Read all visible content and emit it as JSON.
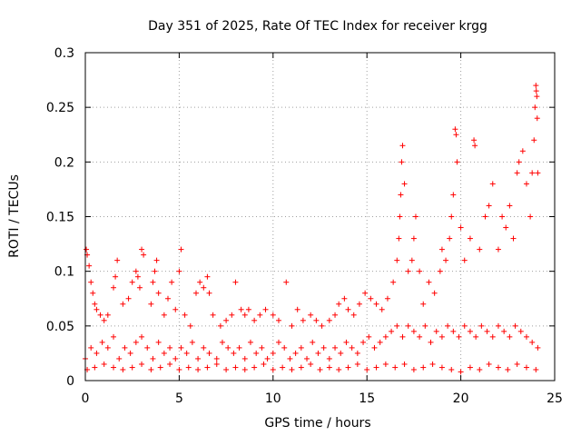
{
  "chart_data": {
    "type": "scatter",
    "title": "Day 351 of 2025, Rate Of TEC Index for receiver krgg",
    "xlabel": "GPS time / hours",
    "ylabel": "ROTI / TECUs",
    "xlim": [
      0,
      25
    ],
    "ylim": [
      0,
      0.3
    ],
    "x_ticks": [
      "0",
      "5",
      "10",
      "15",
      "20",
      "25"
    ],
    "y_ticks": [
      "0",
      "0.05",
      "0.1",
      "0.15",
      "0.2",
      "0.25",
      "0.3"
    ],
    "grid": true,
    "marker": "+",
    "color": "#ff0000",
    "series": [
      {
        "points": [
          [
            0.05,
            0.12
          ],
          [
            0.1,
            0.115
          ],
          [
            0.2,
            0.105
          ],
          [
            0.3,
            0.09
          ],
          [
            0.4,
            0.08
          ],
          [
            0.5,
            0.07
          ],
          [
            0.6,
            0.065
          ],
          [
            0.8,
            0.06
          ],
          [
            1.0,
            0.055
          ],
          [
            1.2,
            0.06
          ],
          [
            1.5,
            0.085
          ],
          [
            1.6,
            0.095
          ],
          [
            1.7,
            0.11
          ],
          [
            2.0,
            0.07
          ],
          [
            2.3,
            0.075
          ],
          [
            2.5,
            0.09
          ],
          [
            2.7,
            0.1
          ],
          [
            2.8,
            0.095
          ],
          [
            2.9,
            0.085
          ],
          [
            3.0,
            0.12
          ],
          [
            3.1,
            0.115
          ],
          [
            3.5,
            0.07
          ],
          [
            3.6,
            0.09
          ],
          [
            3.7,
            0.1
          ],
          [
            3.8,
            0.11
          ],
          [
            3.9,
            0.08
          ],
          [
            4.2,
            0.06
          ],
          [
            4.4,
            0.075
          ],
          [
            4.6,
            0.09
          ],
          [
            4.8,
            0.065
          ],
          [
            5.0,
            0.1
          ],
          [
            5.1,
            0.12
          ],
          [
            5.3,
            0.06
          ],
          [
            5.6,
            0.05
          ],
          [
            5.9,
            0.08
          ],
          [
            6.1,
            0.09
          ],
          [
            6.3,
            0.085
          ],
          [
            6.5,
            0.095
          ],
          [
            6.6,
            0.08
          ],
          [
            6.8,
            0.06
          ],
          [
            7.2,
            0.05
          ],
          [
            7.5,
            0.055
          ],
          [
            7.8,
            0.06
          ],
          [
            8.0,
            0.09
          ],
          [
            8.3,
            0.065
          ],
          [
            8.5,
            0.06
          ],
          [
            8.7,
            0.065
          ],
          [
            9.0,
            0.055
          ],
          [
            9.3,
            0.06
          ],
          [
            9.6,
            0.065
          ],
          [
            10.0,
            0.06
          ],
          [
            10.3,
            0.055
          ],
          [
            10.7,
            0.09
          ],
          [
            11.0,
            0.05
          ],
          [
            11.3,
            0.065
          ],
          [
            11.6,
            0.055
          ],
          [
            12.0,
            0.06
          ],
          [
            12.3,
            0.055
          ],
          [
            12.6,
            0.05
          ],
          [
            13.0,
            0.055
          ],
          [
            13.3,
            0.06
          ],
          [
            13.5,
            0.07
          ],
          [
            13.8,
            0.075
          ],
          [
            14.0,
            0.065
          ],
          [
            14.3,
            0.06
          ],
          [
            14.6,
            0.07
          ],
          [
            14.9,
            0.08
          ],
          [
            15.2,
            0.075
          ],
          [
            15.5,
            0.07
          ],
          [
            15.8,
            0.065
          ],
          [
            16.1,
            0.075
          ],
          [
            16.4,
            0.09
          ],
          [
            16.6,
            0.11
          ],
          [
            16.7,
            0.13
          ],
          [
            16.75,
            0.15
          ],
          [
            16.8,
            0.17
          ],
          [
            16.85,
            0.2
          ],
          [
            16.9,
            0.215
          ],
          [
            17.0,
            0.18
          ],
          [
            17.2,
            0.1
          ],
          [
            17.4,
            0.11
          ],
          [
            17.5,
            0.13
          ],
          [
            17.6,
            0.15
          ],
          [
            17.8,
            0.1
          ],
          [
            18.0,
            0.07
          ],
          [
            18.3,
            0.09
          ],
          [
            18.6,
            0.08
          ],
          [
            18.9,
            0.1
          ],
          [
            19.0,
            0.12
          ],
          [
            19.2,
            0.11
          ],
          [
            19.4,
            0.13
          ],
          [
            19.5,
            0.15
          ],
          [
            19.6,
            0.17
          ],
          [
            19.7,
            0.23
          ],
          [
            19.75,
            0.225
          ],
          [
            19.8,
            0.2
          ],
          [
            20.0,
            0.14
          ],
          [
            20.2,
            0.11
          ],
          [
            20.5,
            0.13
          ],
          [
            20.7,
            0.22
          ],
          [
            20.75,
            0.215
          ],
          [
            21.0,
            0.12
          ],
          [
            21.3,
            0.15
          ],
          [
            21.5,
            0.16
          ],
          [
            21.7,
            0.18
          ],
          [
            22.0,
            0.12
          ],
          [
            22.2,
            0.15
          ],
          [
            22.4,
            0.14
          ],
          [
            22.6,
            0.16
          ],
          [
            22.8,
            0.13
          ],
          [
            23.0,
            0.19
          ],
          [
            23.1,
            0.2
          ],
          [
            23.3,
            0.21
          ],
          [
            23.5,
            0.18
          ],
          [
            23.7,
            0.15
          ],
          [
            23.8,
            0.19
          ],
          [
            23.9,
            0.22
          ],
          [
            23.95,
            0.25
          ],
          [
            24.0,
            0.27
          ],
          [
            24.02,
            0.265
          ],
          [
            24.05,
            0.26
          ],
          [
            24.07,
            0.24
          ],
          [
            24.1,
            0.19
          ],
          [
            0.0,
            0.02
          ],
          [
            0.3,
            0.03
          ],
          [
            0.6,
            0.025
          ],
          [
            0.9,
            0.035
          ],
          [
            1.2,
            0.03
          ],
          [
            1.5,
            0.04
          ],
          [
            1.8,
            0.02
          ],
          [
            2.1,
            0.03
          ],
          [
            2.4,
            0.025
          ],
          [
            2.7,
            0.035
          ],
          [
            3.0,
            0.04
          ],
          [
            3.3,
            0.03
          ],
          [
            3.6,
            0.02
          ],
          [
            3.9,
            0.035
          ],
          [
            4.2,
            0.025
          ],
          [
            4.5,
            0.03
          ],
          [
            4.8,
            0.02
          ],
          [
            5.1,
            0.03
          ],
          [
            5.4,
            0.025
          ],
          [
            5.7,
            0.035
          ],
          [
            6.0,
            0.02
          ],
          [
            6.3,
            0.03
          ],
          [
            6.6,
            0.025
          ],
          [
            7.0,
            0.02
          ],
          [
            7.3,
            0.035
          ],
          [
            7.6,
            0.03
          ],
          [
            7.9,
            0.025
          ],
          [
            8.2,
            0.03
          ],
          [
            8.5,
            0.02
          ],
          [
            8.8,
            0.035
          ],
          [
            9.1,
            0.025
          ],
          [
            9.4,
            0.03
          ],
          [
            9.7,
            0.02
          ],
          [
            10.0,
            0.025
          ],
          [
            10.3,
            0.035
          ],
          [
            10.6,
            0.03
          ],
          [
            10.9,
            0.02
          ],
          [
            11.2,
            0.025
          ],
          [
            11.5,
            0.03
          ],
          [
            11.8,
            0.02
          ],
          [
            12.1,
            0.035
          ],
          [
            12.4,
            0.025
          ],
          [
            12.7,
            0.03
          ],
          [
            13.0,
            0.02
          ],
          [
            13.3,
            0.03
          ],
          [
            13.6,
            0.025
          ],
          [
            13.9,
            0.035
          ],
          [
            14.2,
            0.03
          ],
          [
            14.5,
            0.025
          ],
          [
            14.8,
            0.035
          ],
          [
            15.1,
            0.04
          ],
          [
            15.4,
            0.03
          ],
          [
            15.7,
            0.035
          ],
          [
            16.0,
            0.04
          ],
          [
            16.3,
            0.045
          ],
          [
            16.6,
            0.05
          ],
          [
            16.9,
            0.04
          ],
          [
            17.2,
            0.05
          ],
          [
            17.5,
            0.045
          ],
          [
            17.8,
            0.04
          ],
          [
            18.1,
            0.05
          ],
          [
            18.4,
            0.035
          ],
          [
            18.7,
            0.045
          ],
          [
            19.0,
            0.04
          ],
          [
            19.3,
            0.05
          ],
          [
            19.6,
            0.045
          ],
          [
            19.9,
            0.04
          ],
          [
            20.2,
            0.05
          ],
          [
            20.5,
            0.045
          ],
          [
            20.8,
            0.04
          ],
          [
            21.1,
            0.05
          ],
          [
            21.4,
            0.045
          ],
          [
            21.7,
            0.04
          ],
          [
            22.0,
            0.05
          ],
          [
            22.3,
            0.045
          ],
          [
            22.6,
            0.04
          ],
          [
            22.9,
            0.05
          ],
          [
            23.2,
            0.045
          ],
          [
            23.5,
            0.04
          ],
          [
            23.8,
            0.035
          ],
          [
            24.1,
            0.03
          ],
          [
            0.1,
            0.01
          ],
          [
            0.5,
            0.012
          ],
          [
            1.0,
            0.015
          ],
          [
            1.5,
            0.012
          ],
          [
            2.0,
            0.01
          ],
          [
            2.5,
            0.012
          ],
          [
            3.0,
            0.015
          ],
          [
            3.5,
            0.01
          ],
          [
            4.0,
            0.012
          ],
          [
            4.5,
            0.015
          ],
          [
            5.0,
            0.01
          ],
          [
            5.5,
            0.012
          ],
          [
            6.0,
            0.01
          ],
          [
            6.5,
            0.012
          ],
          [
            7.0,
            0.015
          ],
          [
            7.5,
            0.01
          ],
          [
            8.0,
            0.012
          ],
          [
            8.5,
            0.01
          ],
          [
            9.0,
            0.012
          ],
          [
            9.5,
            0.015
          ],
          [
            10.0,
            0.01
          ],
          [
            10.5,
            0.012
          ],
          [
            11.0,
            0.01
          ],
          [
            11.5,
            0.012
          ],
          [
            12.0,
            0.015
          ],
          [
            12.5,
            0.01
          ],
          [
            13.0,
            0.012
          ],
          [
            13.5,
            0.01
          ],
          [
            14.0,
            0.012
          ],
          [
            14.5,
            0.015
          ],
          [
            15.0,
            0.01
          ],
          [
            15.5,
            0.012
          ],
          [
            16.0,
            0.015
          ],
          [
            16.5,
            0.012
          ],
          [
            17.0,
            0.015
          ],
          [
            17.5,
            0.01
          ],
          [
            18.0,
            0.012
          ],
          [
            18.5,
            0.015
          ],
          [
            19.0,
            0.012
          ],
          [
            19.5,
            0.01
          ],
          [
            20.0,
            0.008
          ],
          [
            20.5,
            0.012
          ],
          [
            21.0,
            0.01
          ],
          [
            21.5,
            0.015
          ],
          [
            22.0,
            0.012
          ],
          [
            22.5,
            0.01
          ],
          [
            23.0,
            0.015
          ],
          [
            23.5,
            0.012
          ],
          [
            24.0,
            0.01
          ]
        ]
      }
    ]
  }
}
